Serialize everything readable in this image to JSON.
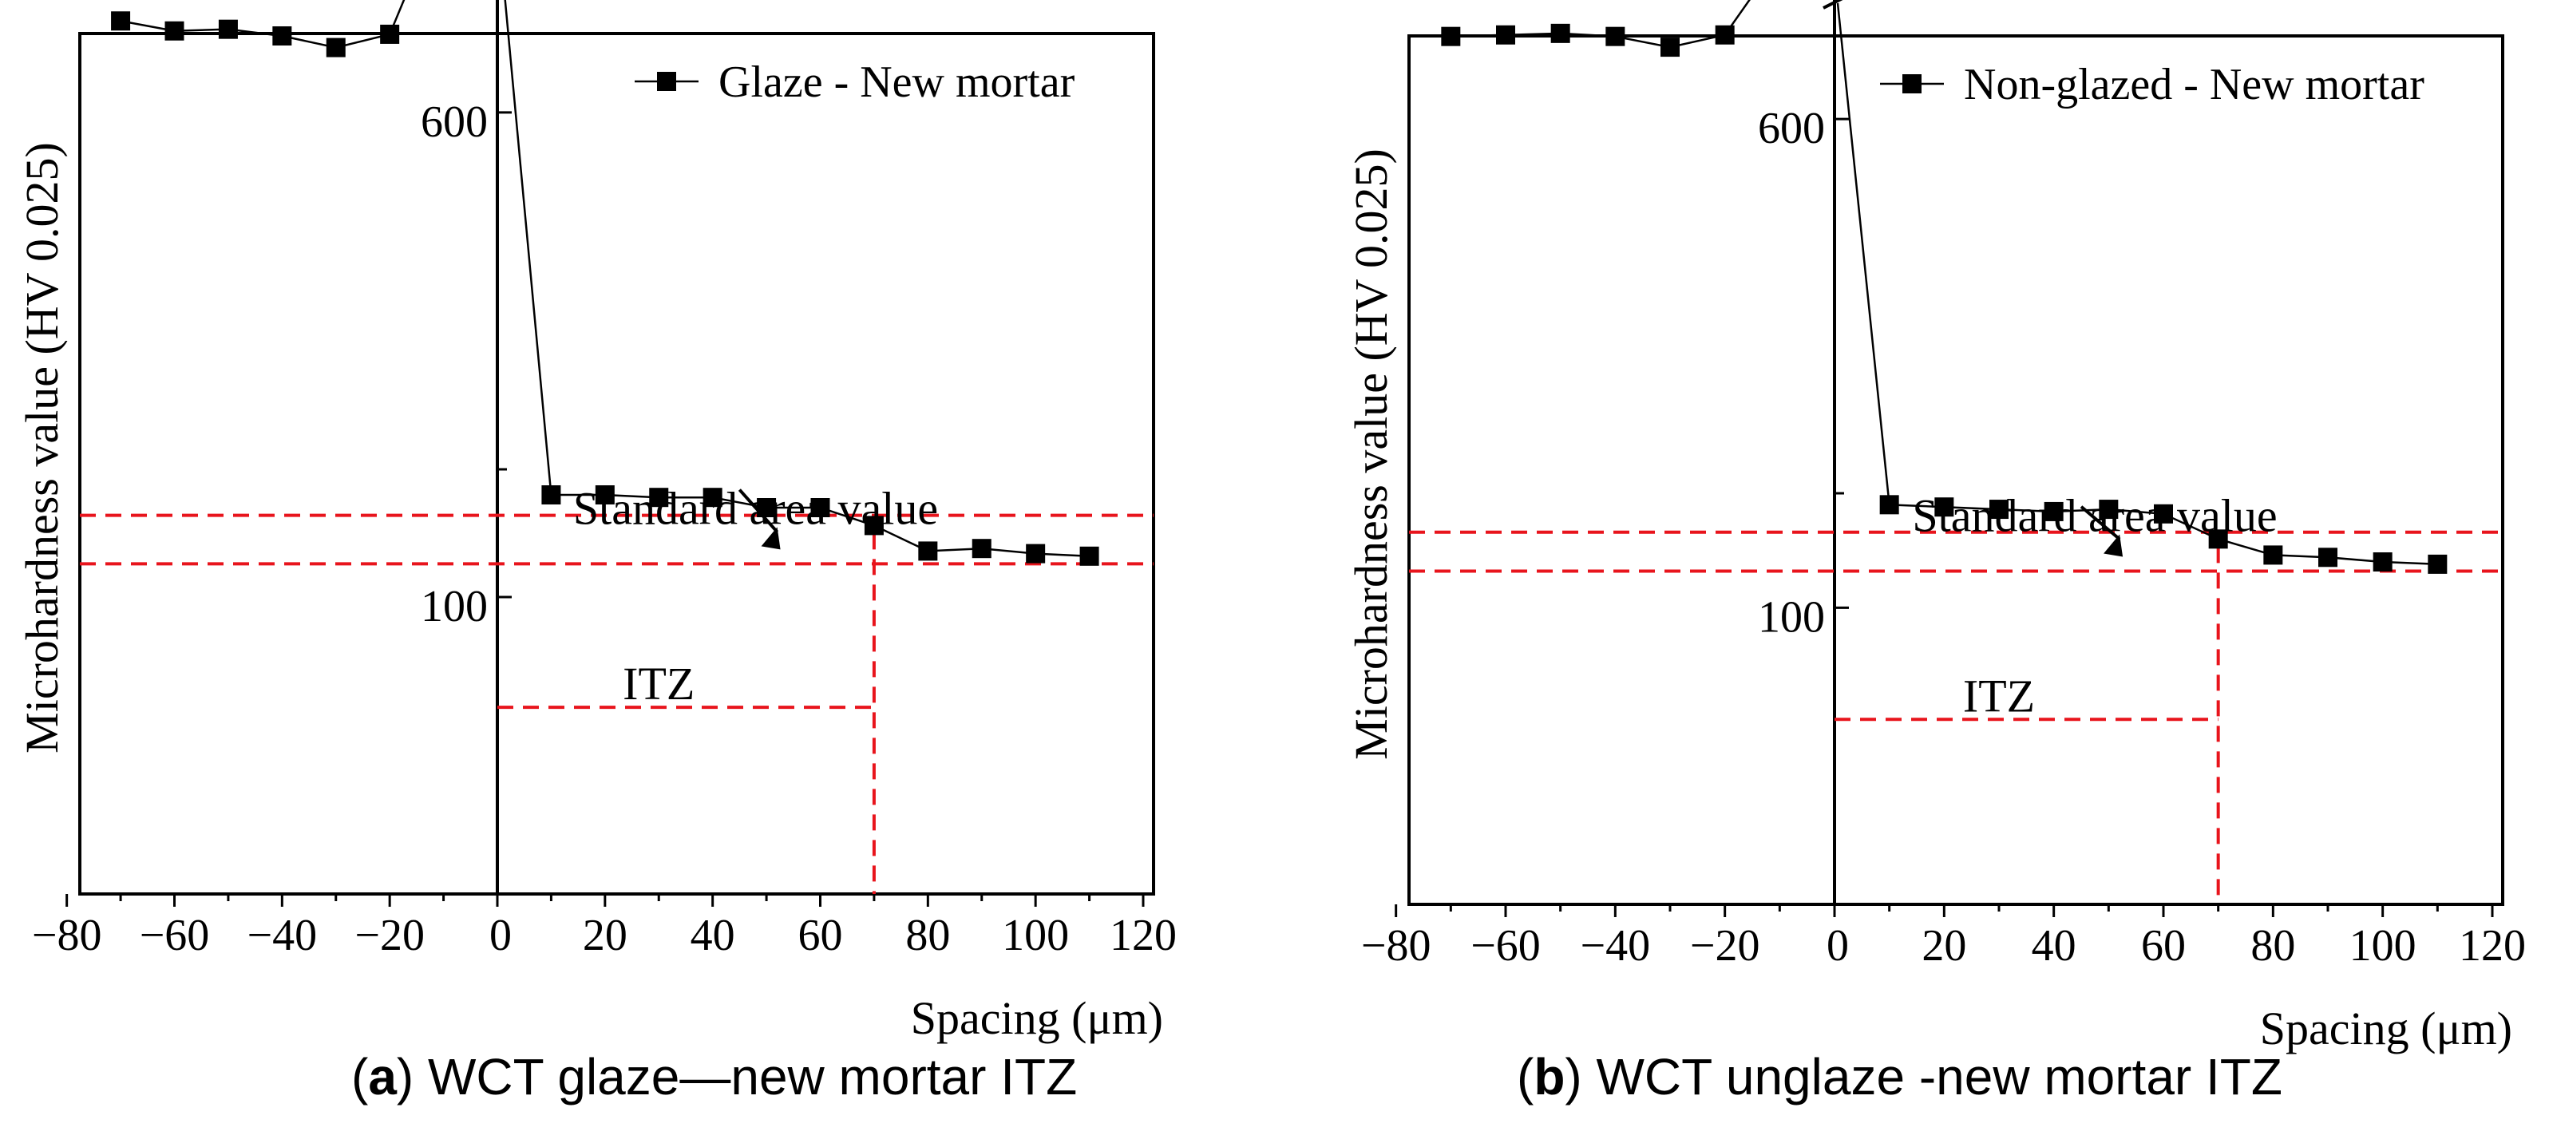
{
  "figure": {
    "captions": [
      {
        "letter": "a",
        "text": "WCT glaze—new mortar ITZ"
      },
      {
        "letter": "b",
        "text": "WCT unglaze -new mortar ITZ"
      }
    ]
  },
  "chart_data": [
    {
      "type": "line",
      "panel": "a",
      "ylabel": "Microhardness value (HV 0.025)",
      "xlabel": "Spacing (μm)",
      "legend": {
        "label": "Glaze - New mortar",
        "position": "top-right",
        "marker": "square"
      },
      "xlim": [
        -80,
        125
      ],
      "x_ticks": [
        "−80",
        "−60",
        "−40",
        "−20",
        "0",
        "20",
        "40",
        "60",
        "80",
        "100",
        "120"
      ],
      "y_tick_labels": [
        "600",
        "100"
      ],
      "y_axis_break": true,
      "series": [
        {
          "name": "Glaze - New mortar",
          "x": [
            -70,
            -60,
            -50,
            -40,
            -30,
            -20,
            -10,
            10,
            20,
            30,
            40,
            50,
            60,
            70,
            80,
            90,
            100,
            110
          ],
          "y": [
            545,
            551,
            550,
            554,
            561,
            553,
            475,
            60,
            60,
            61,
            61,
            65,
            65,
            72,
            82,
            81,
            83,
            84
          ]
        }
      ],
      "annotations": {
        "standard_area_label": "Standard area value",
        "standard_area_bounds": [
          87,
          68
        ],
        "itz_label": "ITZ",
        "itz_boundary_x": 70,
        "line_color": "#e8141c"
      }
    },
    {
      "type": "line",
      "panel": "b",
      "ylabel": "Microhardness value (HV 0.025)",
      "xlabel": "Spacing (μm)",
      "legend": {
        "label": "Non-glazed - New mortar",
        "position": "top-right",
        "marker": "square"
      },
      "xlim": [
        -80,
        125
      ],
      "x_ticks": [
        "−80",
        "−60",
        "−40",
        "−20",
        "0",
        "20",
        "40",
        "60",
        "80",
        "100",
        "120"
      ],
      "y_tick_labels": [
        "600",
        "100"
      ],
      "y_axis_break": true,
      "series": [
        {
          "name": "Non-glazed - New mortar",
          "x": [
            -70,
            -60,
            -50,
            -40,
            -30,
            -20,
            -10,
            10,
            20,
            30,
            40,
            50,
            60,
            70,
            80,
            90,
            100,
            110
          ],
          "y": [
            546,
            545,
            544,
            546,
            553,
            545,
            494,
            55,
            56,
            57,
            58,
            57,
            59,
            70,
            77,
            78,
            80,
            81
          ]
        }
      ],
      "annotations": {
        "standard_area_label": "Standard area value",
        "standard_area_bounds": [
          84,
          67
        ],
        "itz_label": "ITZ",
        "itz_boundary_x": 70,
        "line_color": "#e8141c"
      }
    }
  ]
}
